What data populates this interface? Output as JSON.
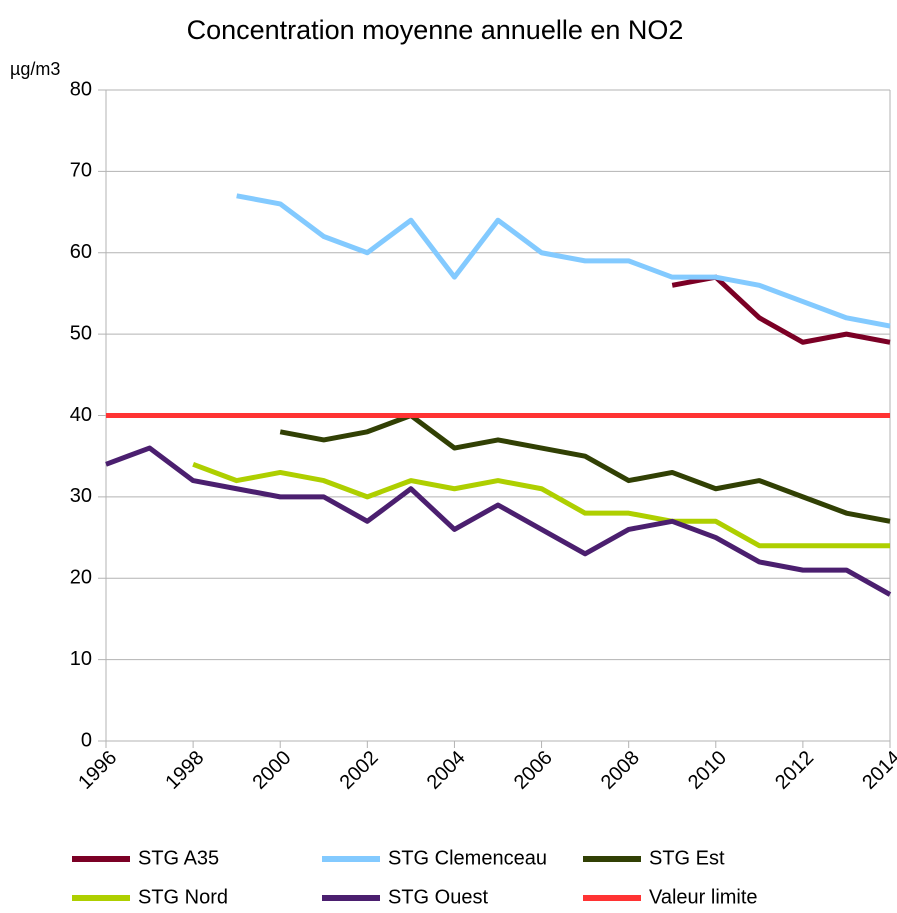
{
  "chart_data": {
    "type": "line",
    "title": "Concentration moyenne annuelle en NO2",
    "y_label": "µg/m3",
    "x": [
      1996,
      1997,
      1998,
      1999,
      2000,
      2001,
      2002,
      2003,
      2004,
      2005,
      2006,
      2007,
      2008,
      2009,
      2010,
      2011,
      2012,
      2013,
      2014
    ],
    "xlim": [
      1996,
      2014
    ],
    "xticks": [
      1996,
      1998,
      2000,
      2002,
      2004,
      2006,
      2008,
      2010,
      2012,
      2014
    ],
    "ylim": [
      0,
      80
    ],
    "yticks": [
      0,
      10,
      20,
      30,
      40,
      50,
      60,
      70,
      80
    ],
    "grid": true,
    "legend": "bottom",
    "series": [
      {
        "name": "STG A35",
        "color": "#7b0025",
        "values": [
          null,
          null,
          null,
          null,
          null,
          null,
          null,
          null,
          null,
          null,
          null,
          null,
          null,
          56,
          57,
          52,
          49,
          50,
          49
        ]
      },
      {
        "name": "STG Clemenceau",
        "color": "#83caff",
        "values": [
          null,
          null,
          null,
          67,
          66,
          62,
          60,
          64,
          57,
          64,
          60,
          59,
          59,
          57,
          57,
          56,
          54,
          52,
          51
        ]
      },
      {
        "name": "STG Est",
        "color": "#314004",
        "values": [
          null,
          null,
          null,
          null,
          38,
          37,
          38,
          40,
          36,
          37,
          36,
          35,
          32,
          33,
          31,
          32,
          30,
          28,
          27
        ]
      },
      {
        "name": "STG Nord",
        "color": "#aecf00",
        "values": [
          null,
          null,
          34,
          32,
          33,
          32,
          30,
          32,
          31,
          32,
          31,
          28,
          28,
          27,
          27,
          24,
          24,
          24,
          24
        ]
      },
      {
        "name": "STG Ouest",
        "color": "#4b1f6f",
        "values": [
          34,
          36,
          32,
          31,
          30,
          30,
          27,
          31,
          26,
          29,
          26,
          23,
          26,
          27,
          25,
          22,
          21,
          21,
          18
        ]
      },
      {
        "name": "Valeur limite",
        "color": "#ff3333",
        "values": [
          40,
          40,
          40,
          40,
          40,
          40,
          40,
          40,
          40,
          40,
          40,
          40,
          40,
          40,
          40,
          40,
          40,
          40,
          40
        ]
      }
    ]
  }
}
